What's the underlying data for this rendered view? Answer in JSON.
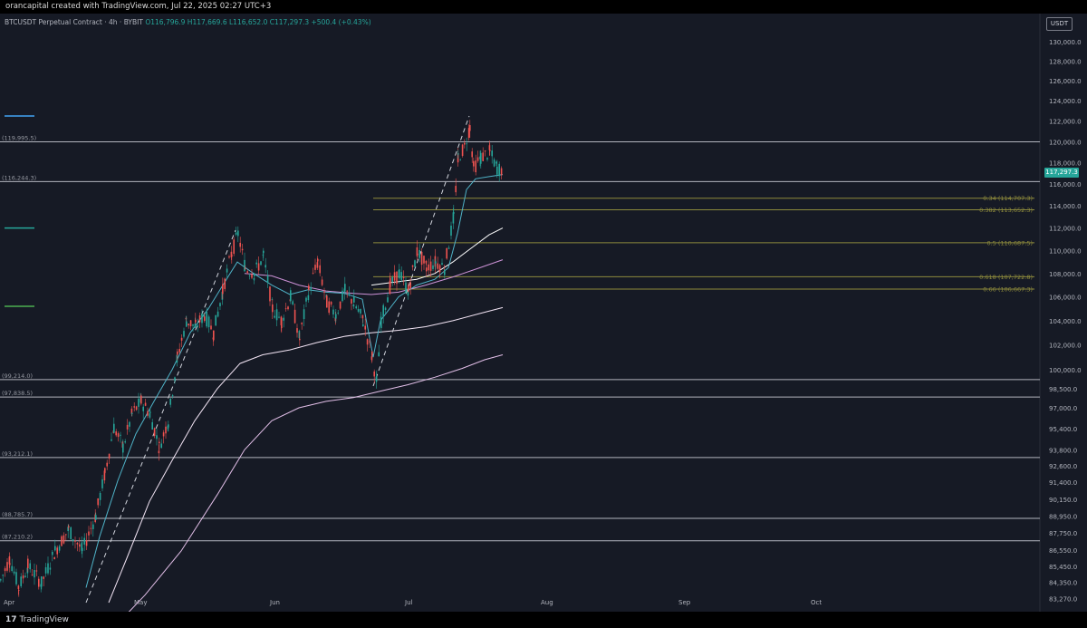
{
  "header": {
    "creator_text": "orancapital created with TradingView.com, Jul 22, 2025 02:27 UTC+3"
  },
  "symbol": {
    "name": "BTCUSDT Perpetual Contract · 4h · BYBIT",
    "ohlc": "O116,796.9  H117,669.6  L116,652.0  C117,297.3  +500.4 (+0.43%)"
  },
  "currency": "USDT",
  "last_price": "117,297.3",
  "footer": {
    "brand": "TradingView",
    "mark": "17"
  },
  "colors": {
    "background": "#161a25",
    "up": "#26a69a",
    "down": "#ef5350",
    "level_line": "#b2b5be",
    "fib_line": "#8d8a3c",
    "ma_fast": "#4fb3c8",
    "ma_slow": "#ce93d8"
  },
  "chart_data": {
    "type": "line",
    "title": "BTCUSDT Perpetual Contract · 4h · BYBIT",
    "y_scale": "log",
    "ylim": [
      83000,
      132000
    ],
    "x_ticks": [
      "Apr",
      "May",
      "Jun",
      "Jul",
      "Aug",
      "Sep",
      "Oct"
    ],
    "y_ticks": [
      "130,000.0",
      "128,000.0",
      "126,000.0",
      "124,000.0",
      "122,000.0",
      "120,000.0",
      "118,000.0",
      "116,000.0",
      "114,000.0",
      "112,000.0",
      "110,000.0",
      "108,000.0",
      "106,000.0",
      "104,000.0",
      "102,000.0",
      "100,000.0",
      "98,500.0",
      "97,000.0",
      "95,400.0",
      "93,800.0",
      "92,600.0",
      "91,400.0",
      "90,150.0",
      "88,950.0",
      "87,750.0",
      "86,550.0",
      "85,450.0",
      "84,350.0",
      "83,270.0"
    ],
    "horizontal_levels": [
      {
        "price": 119995.5,
        "label": "(119,995.5)"
      },
      {
        "price": 116244.3,
        "label": "(116,244.3)"
      },
      {
        "price": 99214.0,
        "label": "(99,214.0)"
      },
      {
        "price": 97838.5,
        "label": "(97,838.5)"
      },
      {
        "price": 93212.1,
        "label": "(93,212.1)"
      },
      {
        "price": 88785.7,
        "label": "(88,785.7)"
      },
      {
        "price": 87210.2,
        "label": "(87,210.2)"
      }
    ],
    "fib_levels": [
      {
        "label": "0.34 (114,707.3)",
        "price": 114707.3
      },
      {
        "label": "0.382 (113,652.3)",
        "price": 113652.3
      },
      {
        "label": "0.5 (110,687.5)",
        "price": 110687.5
      },
      {
        "label": "0.618 (107,722.8)",
        "price": 107722.8
      },
      {
        "label": "0.66 (106,667.3)",
        "price": 106667.3
      }
    ],
    "left_markers": [
      {
        "price": 122500,
        "color": "#42a5f5"
      },
      {
        "price": 112000,
        "color": "#26a69a"
      },
      {
        "price": 105200,
        "color": "#4caf50"
      }
    ],
    "price_path": [
      [
        0,
        84500
      ],
      [
        10,
        86000
      ],
      [
        20,
        84000
      ],
      [
        30,
        85500
      ],
      [
        45,
        84300
      ],
      [
        60,
        86500
      ],
      [
        75,
        88000
      ],
      [
        90,
        86500
      ],
      [
        105,
        89000
      ],
      [
        115,
        92000
      ],
      [
        125,
        95500
      ],
      [
        135,
        94000
      ],
      [
        145,
        96500
      ],
      [
        155,
        97500
      ],
      [
        165,
        96500
      ],
      [
        175,
        94000
      ],
      [
        185,
        96000
      ],
      [
        195,
        101000
      ],
      [
        205,
        104000
      ],
      [
        215,
        103500
      ],
      [
        225,
        104500
      ],
      [
        235,
        103000
      ],
      [
        245,
        106500
      ],
      [
        255,
        109800
      ],
      [
        262,
        111500
      ],
      [
        270,
        108500
      ],
      [
        280,
        108000
      ],
      [
        290,
        109500
      ],
      [
        300,
        105000
      ],
      [
        310,
        104000
      ],
      [
        320,
        106000
      ],
      [
        330,
        102500
      ],
      [
        340,
        106500
      ],
      [
        350,
        109000
      ],
      [
        360,
        105500
      ],
      [
        370,
        104500
      ],
      [
        380,
        106500
      ],
      [
        390,
        105500
      ],
      [
        400,
        104000
      ],
      [
        410,
        101000
      ],
      [
        415,
        99000
      ],
      [
        420,
        104000
      ],
      [
        430,
        107000
      ],
      [
        440,
        108000
      ],
      [
        450,
        106500
      ],
      [
        460,
        110000
      ],
      [
        470,
        108500
      ],
      [
        480,
        109000
      ],
      [
        490,
        108500
      ],
      [
        500,
        113000
      ],
      [
        505,
        118500
      ],
      [
        512,
        119500
      ],
      [
        518,
        121500
      ],
      [
        522,
        117500
      ],
      [
        530,
        118500
      ],
      [
        540,
        119000
      ],
      [
        548,
        117500
      ],
      [
        555,
        117297.3
      ]
    ],
    "ma_fast_path": [
      [
        95,
        84000
      ],
      [
        110,
        87500
      ],
      [
        130,
        91500
      ],
      [
        150,
        95000
      ],
      [
        170,
        97500
      ],
      [
        190,
        100000
      ],
      [
        210,
        103000
      ],
      [
        230,
        105000
      ],
      [
        250,
        107500
      ],
      [
        262,
        109000
      ],
      [
        280,
        108000
      ],
      [
        300,
        107000
      ],
      [
        320,
        106200
      ],
      [
        340,
        106600
      ],
      [
        360,
        106400
      ],
      [
        380,
        106300
      ],
      [
        400,
        105800
      ],
      [
        412,
        101000
      ],
      [
        420,
        104000
      ],
      [
        440,
        106000
      ],
      [
        460,
        107000
      ],
      [
        480,
        107500
      ],
      [
        495,
        108500
      ],
      [
        505,
        111500
      ],
      [
        515,
        115500
      ],
      [
        525,
        116500
      ],
      [
        540,
        116700
      ],
      [
        555,
        116900
      ]
    ],
    "ma_mid_path": [
      [
        410,
        107000
      ],
      [
        440,
        107300
      ],
      [
        460,
        107500
      ],
      [
        480,
        108000
      ],
      [
        500,
        109000
      ],
      [
        520,
        110200
      ],
      [
        540,
        111400
      ],
      [
        555,
        112000
      ]
    ],
    "ma_slow_path": [
      [
        270,
        108000
      ],
      [
        300,
        107800
      ],
      [
        330,
        107000
      ],
      [
        360,
        106500
      ],
      [
        390,
        106300
      ],
      [
        410,
        106200
      ],
      [
        440,
        106400
      ],
      [
        470,
        107000
      ],
      [
        500,
        107700
      ],
      [
        530,
        108500
      ],
      [
        555,
        109200
      ]
    ],
    "ma_200_path": [
      [
        120,
        83000
      ],
      [
        140,
        86000
      ],
      [
        165,
        90000
      ],
      [
        190,
        93000
      ],
      [
        215,
        96000
      ],
      [
        240,
        98500
      ],
      [
        265,
        100500
      ],
      [
        290,
        101200
      ],
      [
        320,
        101600
      ],
      [
        350,
        102200
      ],
      [
        380,
        102700
      ],
      [
        410,
        103000
      ],
      [
        440,
        103200
      ],
      [
        470,
        103500
      ],
      [
        500,
        104000
      ],
      [
        530,
        104600
      ],
      [
        555,
        105100
      ]
    ],
    "ma_400_path": [
      [
        120,
        81000
      ],
      [
        160,
        83500
      ],
      [
        200,
        86500
      ],
      [
        240,
        90500
      ],
      [
        270,
        93800
      ],
      [
        300,
        96000
      ],
      [
        330,
        97000
      ],
      [
        360,
        97500
      ],
      [
        390,
        97800
      ],
      [
        420,
        98300
      ],
      [
        450,
        98800
      ],
      [
        480,
        99400
      ],
      [
        510,
        100100
      ],
      [
        535,
        100800
      ],
      [
        555,
        101200
      ]
    ],
    "dashed_projections": [
      [
        [
          95,
          83000
        ],
        [
          260,
          111800
        ]
      ],
      [
        [
          412,
          98700
        ],
        [
          518,
          122500
        ]
      ]
    ]
  }
}
